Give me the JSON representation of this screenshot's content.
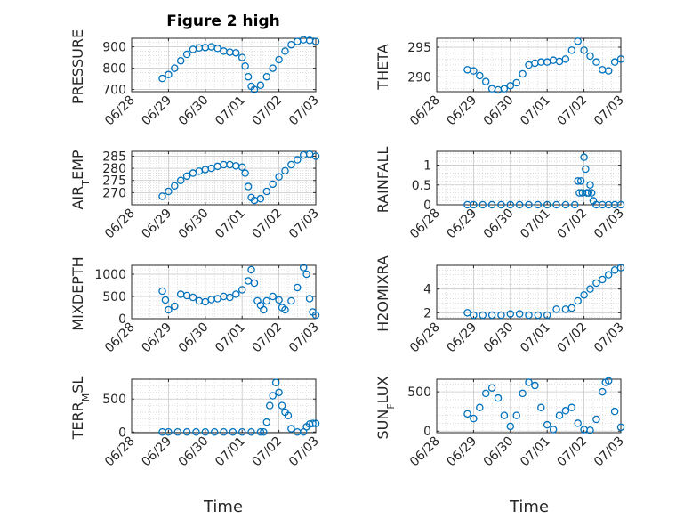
{
  "figure": {
    "title": "Figure 2 high",
    "xlabel": "Time",
    "colors": {
      "marker": "#0072BD",
      "axes": "#262626",
      "grid": "#c8c8c8",
      "background": "#ffffff"
    },
    "x_tick_labels": [
      "06/28",
      "06/29",
      "06/30",
      "07/01",
      "07/02",
      "07/03"
    ]
  },
  "chart_data": [
    {
      "type": "scatter",
      "ylabel": "PRESSURE",
      "ylim": [
        690,
        940
      ],
      "yticks": [
        700,
        800,
        900
      ],
      "ytick_labels": [
        "700",
        "800",
        "900"
      ],
      "xlim": [
        "06/28",
        "07/03"
      ],
      "grid": true,
      "marker": "open-circle",
      "x": [
        "06/28 20:00",
        "06/29 00:00",
        "06/29 04:00",
        "06/29 08:00",
        "06/29 12:00",
        "06/29 16:00",
        "06/29 20:00",
        "06/30 00:00",
        "06/30 04:00",
        "06/30 08:00",
        "06/30 12:00",
        "06/30 16:00",
        "06/30 20:00",
        "07/01 00:00",
        "07/01 02:00",
        "07/01 04:00",
        "07/01 06:00",
        "07/01 08:00",
        "07/01 12:00",
        "07/01 16:00",
        "07/01 20:00",
        "07/02 00:00",
        "07/02 04:00",
        "07/02 08:00",
        "07/02 12:00",
        "07/02 16:00",
        "07/02 20:00",
        "07/03 00:00"
      ],
      "y": [
        752,
        770,
        800,
        835,
        865,
        888,
        895,
        897,
        900,
        893,
        880,
        875,
        872,
        850,
        810,
        760,
        715,
        700,
        720,
        760,
        800,
        840,
        880,
        910,
        925,
        933,
        930,
        925
      ]
    },
    {
      "type": "scatter",
      "ylabel": "THETA",
      "ylim": [
        287.5,
        296.5
      ],
      "yticks": [
        290,
        295
      ],
      "ytick_labels": [
        "290",
        "295"
      ],
      "xlim": [
        "06/28",
        "07/03"
      ],
      "grid": true,
      "marker": "open-circle",
      "x": [
        "06/28 20:00",
        "06/29 00:00",
        "06/29 04:00",
        "06/29 08:00",
        "06/29 12:00",
        "06/29 16:00",
        "06/29 20:00",
        "06/30 00:00",
        "06/30 04:00",
        "06/30 08:00",
        "06/30 12:00",
        "06/30 16:00",
        "06/30 20:00",
        "07/01 00:00",
        "07/01 04:00",
        "07/01 08:00",
        "07/01 12:00",
        "07/01 16:00",
        "07/01 20:00",
        "07/02 00:00",
        "07/02 04:00",
        "07/02 08:00",
        "07/02 12:00",
        "07/02 16:00",
        "07/02 20:00",
        "07/03 00:00"
      ],
      "y": [
        291.2,
        291.0,
        290.2,
        289.2,
        288.0,
        287.8,
        288.0,
        288.5,
        289.0,
        290.5,
        292.0,
        292.3,
        292.5,
        292.5,
        292.8,
        292.6,
        293.0,
        294.5,
        296.0,
        294.5,
        293.5,
        292.5,
        291.2,
        291.0,
        292.5,
        293.0
      ]
    },
    {
      "type": "scatter",
      "ylabel": "AIR_TEMP",
      "ylim": [
        265,
        287
      ],
      "yticks": [
        270,
        275,
        280,
        285
      ],
      "ytick_labels": [
        "270",
        "275",
        "280",
        "285"
      ],
      "xlim": [
        "06/28",
        "07/03"
      ],
      "grid": true,
      "marker": "open-circle",
      "x": [
        "06/28 20:00",
        "06/29 00:00",
        "06/29 04:00",
        "06/29 08:00",
        "06/29 12:00",
        "06/29 16:00",
        "06/29 20:00",
        "06/30 00:00",
        "06/30 04:00",
        "06/30 08:00",
        "06/30 12:00",
        "06/30 16:00",
        "06/30 20:00",
        "07/01 00:00",
        "07/01 02:00",
        "07/01 04:00",
        "07/01 06:00",
        "07/01 08:00",
        "07/01 12:00",
        "07/01 16:00",
        "07/01 20:00",
        "07/02 00:00",
        "07/02 04:00",
        "07/02 08:00",
        "07/02 12:00",
        "07/02 16:00",
        "07/02 20:00",
        "07/03 00:00"
      ],
      "y": [
        268.5,
        270.5,
        272.8,
        275.0,
        276.8,
        278.0,
        278.8,
        279.5,
        280.0,
        280.8,
        281.5,
        281.5,
        281.0,
        280.5,
        278.0,
        272.5,
        268.0,
        266.8,
        267.5,
        270.5,
        273.5,
        276.5,
        279.0,
        281.5,
        283.5,
        285.5,
        285.8,
        285.0
      ]
    },
    {
      "type": "scatter",
      "ylabel": "RAINFALL",
      "ylim": [
        0,
        1.35
      ],
      "yticks": [
        0,
        0.5,
        1
      ],
      "ytick_labels": [
        "0",
        "0.5",
        "1"
      ],
      "xlim": [
        "06/28",
        "07/03"
      ],
      "grid": true,
      "marker": "open-circle",
      "x": [
        "06/28 20:00",
        "06/29 00:00",
        "06/29 06:00",
        "06/29 12:00",
        "06/29 18:00",
        "06/30 00:00",
        "06/30 06:00",
        "06/30 12:00",
        "06/30 18:00",
        "07/01 00:00",
        "07/01 06:00",
        "07/01 12:00",
        "07/01 18:00",
        "07/01 20:00",
        "07/01 21:00",
        "07/01 22:00",
        "07/01 23:00",
        "07/02 00:00",
        "07/02 01:00",
        "07/02 02:00",
        "07/02 03:00",
        "07/02 04:00",
        "07/02 05:00",
        "07/02 06:00",
        "07/02 08:00",
        "07/02 12:00",
        "07/02 16:00",
        "07/02 20:00",
        "07/03 00:00"
      ],
      "y": [
        0,
        0,
        0,
        0,
        0,
        0,
        0,
        0,
        0,
        0,
        0,
        0,
        0,
        0.6,
        0.3,
        0.6,
        0.3,
        1.2,
        0.9,
        0.3,
        0.3,
        0.5,
        0.3,
        0.1,
        0,
        0,
        0,
        0,
        0
      ]
    },
    {
      "type": "scatter",
      "ylabel": "MIXDEPTH",
      "ylim": [
        0,
        1200
      ],
      "yticks": [
        0,
        500,
        1000
      ],
      "ytick_labels": [
        "0",
        "500",
        "1000"
      ],
      "xlim": [
        "06/28",
        "07/03"
      ],
      "grid": true,
      "marker": "open-circle",
      "x": [
        "06/28 20:00",
        "06/28 22:00",
        "06/29 00:00",
        "06/29 04:00",
        "06/29 08:00",
        "06/29 12:00",
        "06/29 16:00",
        "06/29 20:00",
        "06/30 00:00",
        "06/30 04:00",
        "06/30 08:00",
        "06/30 12:00",
        "06/30 16:00",
        "06/30 20:00",
        "07/01 00:00",
        "07/01 04:00",
        "07/01 06:00",
        "07/01 08:00",
        "07/01 10:00",
        "07/01 12:00",
        "07/01 14:00",
        "07/01 16:00",
        "07/01 20:00",
        "07/02 00:00",
        "07/02 02:00",
        "07/02 04:00",
        "07/02 08:00",
        "07/02 12:00",
        "07/02 16:00",
        "07/02 18:00",
        "07/02 20:00",
        "07/02 22:00",
        "07/03 00:00"
      ],
      "y": [
        620,
        420,
        200,
        280,
        550,
        520,
        480,
        400,
        380,
        430,
        450,
        500,
        480,
        550,
        650,
        850,
        1100,
        800,
        400,
        300,
        200,
        400,
        500,
        420,
        250,
        200,
        400,
        700,
        1150,
        1000,
        450,
        150,
        80
      ]
    },
    {
      "type": "scatter",
      "ylabel": "H2OMIXRA",
      "ylim": [
        1.5,
        6
      ],
      "yticks": [
        2,
        4
      ],
      "ytick_labels": [
        "2",
        "4"
      ],
      "xlim": [
        "06/28",
        "07/03"
      ],
      "grid": true,
      "marker": "open-circle",
      "x": [
        "06/28 20:00",
        "06/29 00:00",
        "06/29 06:00",
        "06/29 12:00",
        "06/29 18:00",
        "06/30 00:00",
        "06/30 06:00",
        "06/30 12:00",
        "06/30 18:00",
        "07/01 00:00",
        "07/01 06:00",
        "07/01 12:00",
        "07/01 16:00",
        "07/01 20:00",
        "07/02 00:00",
        "07/02 04:00",
        "07/02 08:00",
        "07/02 12:00",
        "07/02 16:00",
        "07/02 20:00",
        "07/03 00:00"
      ],
      "y": [
        2.0,
        1.8,
        1.8,
        1.8,
        1.8,
        1.9,
        1.9,
        1.8,
        1.8,
        1.8,
        2.3,
        2.3,
        2.4,
        3.0,
        3.5,
        4.0,
        4.5,
        4.8,
        5.2,
        5.6,
        5.8
      ]
    },
    {
      "type": "scatter",
      "ylabel": "TERR_MSL",
      "ylim": [
        -10,
        800
      ],
      "yticks": [
        0,
        500
      ],
      "ytick_labels": [
        "0",
        "500"
      ],
      "xlim": [
        "06/28",
        "07/03"
      ],
      "grid": true,
      "marker": "open-circle",
      "x": [
        "06/28 20:00",
        "06/29 00:00",
        "06/29 06:00",
        "06/29 12:00",
        "06/29 18:00",
        "06/30 00:00",
        "06/30 06:00",
        "06/30 12:00",
        "06/30 18:00",
        "07/01 00:00",
        "07/01 06:00",
        "07/01 12:00",
        "07/01 14:00",
        "07/01 16:00",
        "07/01 18:00",
        "07/01 20:00",
        "07/01 22:00",
        "07/02 00:00",
        "07/02 02:00",
        "07/02 04:00",
        "07/02 06:00",
        "07/02 08:00",
        "07/02 12:00",
        "07/02 16:00",
        "07/02 18:00",
        "07/02 20:00",
        "07/02 22:00",
        "07/03 00:00"
      ],
      "y": [
        0,
        0,
        0,
        0,
        0,
        0,
        0,
        0,
        0,
        0,
        0,
        0,
        0,
        150,
        400,
        550,
        750,
        600,
        400,
        300,
        250,
        50,
        0,
        0,
        80,
        120,
        130,
        130
      ]
    },
    {
      "type": "scatter",
      "ylabel": "SUN_FLUX",
      "ylim": [
        -20,
        660
      ],
      "yticks": [
        0,
        500
      ],
      "ytick_labels": [
        "0",
        "500"
      ],
      "xlim": [
        "06/28",
        "07/03"
      ],
      "grid": true,
      "marker": "open-circle",
      "x": [
        "06/28 20:00",
        "06/29 00:00",
        "06/29 04:00",
        "06/29 08:00",
        "06/29 12:00",
        "06/29 16:00",
        "06/29 20:00",
        "06/30 00:00",
        "06/30 04:00",
        "06/30 08:00",
        "06/30 12:00",
        "06/30 16:00",
        "06/30 20:00",
        "07/01 00:00",
        "07/01 04:00",
        "07/01 08:00",
        "07/01 12:00",
        "07/01 16:00",
        "07/01 20:00",
        "07/02 00:00",
        "07/02 04:00",
        "07/02 08:00",
        "07/02 12:00",
        "07/02 14:00",
        "07/02 16:00",
        "07/02 20:00",
        "07/03 00:00"
      ],
      "y": [
        220,
        160,
        300,
        480,
        550,
        420,
        200,
        60,
        200,
        480,
        620,
        580,
        300,
        80,
        20,
        200,
        260,
        300,
        100,
        20,
        10,
        150,
        500,
        620,
        640,
        250,
        50
      ]
    }
  ]
}
